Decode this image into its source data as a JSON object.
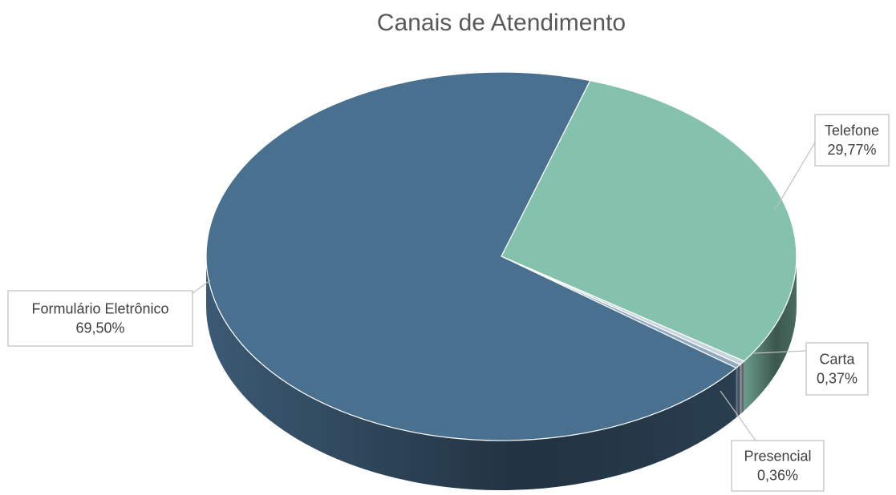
{
  "chart_data": {
    "type": "pie",
    "title": "Canais de Atendimento",
    "categories": [
      "Telefone",
      "Carta",
      "Presencial",
      "Formulário Eletrônico"
    ],
    "values": [
      29.77,
      0.37,
      0.36,
      69.5
    ],
    "value_labels": [
      "29,77%",
      "0,37%",
      "0,36%",
      "69,50%"
    ],
    "colors": [
      "#84c2ae",
      "#c9d5dd",
      "#8fa9bf",
      "#4a7090"
    ]
  }
}
